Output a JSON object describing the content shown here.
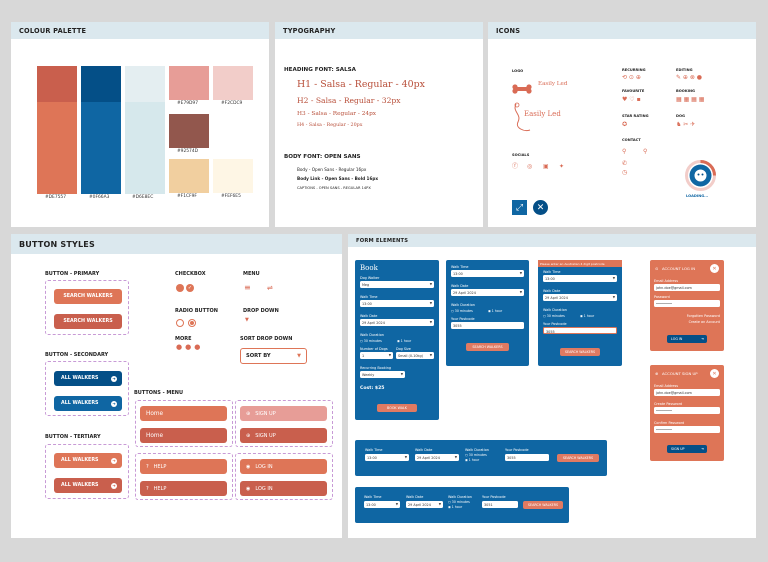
{
  "colour_palette": {
    "title": "COLOUR PALETTE",
    "swatches": [
      {
        "top": "#C95F4D",
        "main": "#DE7557",
        "label": "#DE7557"
      },
      {
        "top": "#044F87",
        "main": "#0F66A3",
        "label": "#0F66A3"
      },
      {
        "top": "#E4EEF1",
        "main": "#D6E8EC",
        "label": "#D6E8EC"
      },
      {
        "color": "#E79D97",
        "label": "#E79D97"
      },
      {
        "color": "#F2CDC9",
        "label": "#F2CDC9"
      },
      {
        "color": "#92574D",
        "label": "#92574D"
      },
      {
        "color": "#F1CF9F",
        "label": "#F1CF9F"
      },
      {
        "color": "#FEF6E5",
        "label": "#FEF6E5"
      }
    ]
  },
  "typography": {
    "title": "TYPOGRAPHY",
    "heading_font": "HEADING FONT: SALSA",
    "h1": "H1 - Salsa - Regular - 40px",
    "h2": "H2 - Salsa - Regular - 32px",
    "h3": "H3 - Salsa - Regular - 24px",
    "h4": "H4 - Salsa - Regular - 20px",
    "body_font": "BODY FONT: OPEN SANS",
    "body": "Body - Open Sans - Regular 16px",
    "body_link": "Body Link - Open Sans - Bold 16px",
    "captions": "CAPTIONS - OPEN SANS - REGULAR 14PX"
  },
  "icons": {
    "title": "ICONS",
    "logo": "LOGO",
    "logo_text": "Easily Led",
    "socials": "SOCIALS",
    "recurring": "RECURRING",
    "editing": "EDITING",
    "favourite": "FAVOURITE",
    "booking": "BOOKING",
    "star_rating": "STAR RATING",
    "dog": "DOG",
    "contact": "CONTACT",
    "loading": "LOADING..."
  },
  "button_styles": {
    "title": "BUTTON STYLES",
    "primary": "BUTTON - PRIMARY",
    "search_walkers": "SEARCH WALKERS",
    "secondary": "BUTTON - SECONDARY",
    "all_walkers": "ALL WALKERS",
    "tertiary": "BUTTON - TERTIARY",
    "checkbox": "CHECKBOX",
    "menu": "MENU",
    "radio_button": "RADIO BUTTON",
    "drop_down": "DROP DOWN",
    "more": "MORE",
    "sort_drop_down": "SORT DROP DOWN",
    "sort_by": "SORT BY",
    "buttons_menu": "BUTTONS - MENU",
    "home": "Home",
    "sign_up": "SIGN UP",
    "help": "HELP",
    "log_in": "LOG IN"
  },
  "form_elements": {
    "title": "FORM ELEMENTS",
    "book": {
      "title": "Book",
      "dog_walker": "Dog Walker",
      "dog_walker_val": "Meg",
      "walk_time": "Walk Time",
      "walk_time_val": "13:00",
      "walk_date": "Walk Date",
      "walk_date_val": "29 April 2024",
      "walk_duration": "Walk Duration",
      "opt30": "30 minutes",
      "opt1h": "1 hour",
      "num_dogs": "Number of Dogs",
      "num_dogs_val": "1",
      "dog_size": "Dog Size",
      "dog_size_val": "Small (0-10kg)",
      "recurring": "Recurring Booking",
      "recurring_val": "Weekly",
      "cost": "Cost: $25",
      "book_walk": "BOOK WALK"
    },
    "search": {
      "walk_time": "Walk Time",
      "walk_time_val": "13:00",
      "walk_date": "Walk Date",
      "walk_date_val": "29 April 2024",
      "walk_duration": "Walk Duration",
      "opt30": "30 minutes",
      "opt1h": "1 hour",
      "postcode": "Your Postcode",
      "postcode_val": "3055",
      "postcode_val2": "3051",
      "search_walkers": "SEARCH WALKERS",
      "error": "Please enter an Australian 4 digit postcode"
    },
    "login": {
      "title": "ACCOUNT LOG IN",
      "email": "Email Address",
      "email_val": "john.doe@gmail.com",
      "password": "Password",
      "password_val": "••••••••",
      "forgotten": "Forgotten Password",
      "create": "Create an Account",
      "log_in": "LOG IN"
    },
    "signup": {
      "title": "ACCOUNT SIGN UP",
      "email": "Email Address",
      "email_val": "john.doe@gmail.com",
      "password": "Create Password",
      "confirm": "Confirm Password",
      "password_val": "••••••••",
      "sign_up": "SIGN UP"
    }
  }
}
